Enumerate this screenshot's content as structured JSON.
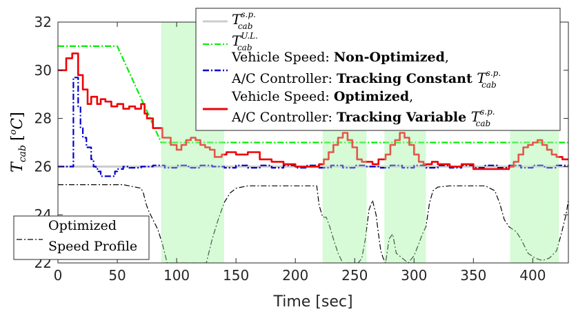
{
  "chart_data": {
    "type": "line",
    "xlabel": "Time [sec]",
    "ylabel": {
      "symbol": "T",
      "sub": "cab",
      "unit_open": "[",
      "unit_sup": "o",
      "unit_letter": "C",
      "unit_close": "]"
    },
    "xlim": [
      0,
      430
    ],
    "ylim": [
      22,
      32
    ],
    "xticks": [
      0,
      50,
      100,
      150,
      200,
      250,
      300,
      350,
      400
    ],
    "yticks": [
      22,
      24,
      26,
      28,
      30,
      32
    ],
    "shaded_intervals": [
      [
        87,
        140
      ],
      [
        223,
        260
      ],
      [
        275,
        310
      ],
      [
        381,
        422
      ]
    ],
    "shade_color": "#cdfacd",
    "series": [
      {
        "name": "setpoint",
        "legend_symbol": "T",
        "legend_sup": "s.p.",
        "legend_sub": "cab",
        "color": "#cccccc",
        "style": "solid",
        "x": [
          0,
          430
        ],
        "y": [
          26,
          26
        ]
      },
      {
        "name": "upper_limit",
        "legend_symbol": "T",
        "legend_sup": "U.L.",
        "legend_sub": "cab",
        "color": "#00ee00",
        "style": "dashdot",
        "x": [
          0,
          50,
          87,
          430
        ],
        "y": [
          31,
          31,
          27,
          27
        ]
      },
      {
        "name": "non_optimized_tracking_constant",
        "legend_line1_prefix": "Vehicle Speed: ",
        "legend_line1_bold": "Non-Optimized",
        "legend_line2_prefix": "A/C Controller: ",
        "legend_line2_bold": "Tracking Constant ",
        "legend_symbol": "T",
        "legend_sup": "s.p.",
        "legend_sub": "cab",
        "color": "#0000cc",
        "style": "dashdot",
        "x": [
          0,
          12,
          13,
          15,
          17,
          19,
          21,
          22,
          24,
          26,
          28,
          30,
          32,
          34,
          36,
          38,
          45,
          48,
          50,
          55,
          60,
          70,
          80,
          90,
          100,
          110,
          120,
          130,
          140,
          150,
          160,
          170,
          180,
          190,
          200,
          210,
          220,
          230,
          240,
          250,
          260,
          270,
          280,
          290,
          300,
          310,
          320,
          330,
          340,
          350,
          360,
          370,
          380,
          390,
          400,
          410,
          420,
          430
        ],
        "y": [
          26,
          26,
          29.7,
          29.7,
          28.5,
          27.6,
          27.2,
          27.2,
          26.8,
          26.8,
          26.3,
          26.0,
          25.9,
          25.8,
          25.6,
          25.6,
          25.6,
          25.8,
          25.9,
          26.0,
          25.95,
          26.0,
          26.05,
          25.95,
          26.05,
          25.95,
          26.05,
          26.0,
          25.95,
          26.05,
          25.95,
          26.05,
          25.95,
          26.05,
          25.95,
          26.05,
          25.95,
          26.05,
          25.95,
          26.05,
          26.0,
          25.95,
          26.05,
          25.95,
          26.05,
          25.95,
          26.05,
          25.95,
          26.05,
          25.95,
          26.05,
          25.95,
          26.05,
          25.95,
          26.05,
          25.95,
          26.05,
          26.0
        ]
      },
      {
        "name": "optimized_tracking_variable",
        "legend_line1_prefix": "Vehicle Speed: ",
        "legend_line1_bold": "Optimized",
        "legend_line2_prefix": "A/C Controller: ",
        "legend_line2_bold": "Tracking Variable ",
        "legend_symbol": "T",
        "legend_sup": "s.p.",
        "legend_sub": "cab",
        "color": "#ee0000",
        "style": "solid",
        "x": [
          0,
          5,
          7,
          10,
          12,
          15,
          17,
          20,
          21,
          23,
          25,
          26,
          28,
          30,
          33,
          36,
          40,
          45,
          50,
          55,
          60,
          65,
          70,
          73,
          75,
          80,
          85,
          88,
          92,
          95,
          100,
          104,
          108,
          112,
          116,
          120,
          124,
          128,
          132,
          138,
          142,
          150,
          160,
          170,
          180,
          190,
          200,
          210,
          215,
          220,
          224,
          228,
          232,
          236,
          240,
          244,
          248,
          252,
          256,
          260,
          265,
          270,
          276,
          280,
          284,
          288,
          292,
          296,
          300,
          304,
          308,
          315,
          320,
          330,
          340,
          350,
          360,
          370,
          380,
          384,
          388,
          392,
          396,
          400,
          404,
          408,
          412,
          416,
          420,
          425,
          430
        ],
        "y": [
          30,
          30,
          30.5,
          30.5,
          30.7,
          30.7,
          29.8,
          29.8,
          29.2,
          29.2,
          28.6,
          28.6,
          28.9,
          28.9,
          28.6,
          28.8,
          28.7,
          28.5,
          28.6,
          28.4,
          28.5,
          28.4,
          28.6,
          28.2,
          28.0,
          27.6,
          27.6,
          27.2,
          27.2,
          26.9,
          26.7,
          26.9,
          27.1,
          27.2,
          27.1,
          26.9,
          26.8,
          26.7,
          26.4,
          26.5,
          26.6,
          26.5,
          26.6,
          26.3,
          26.2,
          26.1,
          26.0,
          26.0,
          26.0,
          26.1,
          26.3,
          26.6,
          26.9,
          27.2,
          27.4,
          27.1,
          26.8,
          26.3,
          26.2,
          26.2,
          26.1,
          26.3,
          26.5,
          26.9,
          27.1,
          27.4,
          27.2,
          26.9,
          26.5,
          26.2,
          26.1,
          26.2,
          26.1,
          26.0,
          26.1,
          25.9,
          25.9,
          25.9,
          26.0,
          26.2,
          26.5,
          26.8,
          26.9,
          27.0,
          27.1,
          26.9,
          26.7,
          26.5,
          26.4,
          26.3,
          26.3
        ]
      },
      {
        "name": "optimized_speed_profile",
        "legend_line1": "Optimized",
        "legend_line2": "Speed Profile",
        "color": "#000000",
        "style": "dashdot",
        "x": [
          0,
          30,
          55,
          70,
          72,
          74,
          76,
          80,
          84,
          88,
          92,
          100,
          110,
          125,
          130,
          135,
          140,
          145,
          150,
          160,
          180,
          200,
          218,
          220,
          223,
          226,
          229,
          232,
          236,
          240,
          243,
          246,
          250,
          253,
          256,
          259,
          262,
          265,
          268,
          270,
          272,
          274,
          276,
          279,
          282,
          285,
          290,
          295,
          300,
          304,
          307,
          310,
          313,
          316,
          320,
          330,
          360,
          368,
          372,
          376,
          380,
          383,
          386,
          390,
          396,
          402,
          408,
          414,
          420,
          424,
          428,
          430
        ],
        "y": [
          25.25,
          25.25,
          25.25,
          25.1,
          24.9,
          24.5,
          24.2,
          23.8,
          23.4,
          22.8,
          22.0,
          22.0,
          22.0,
          22.0,
          23.0,
          23.8,
          24.5,
          24.9,
          25.1,
          25.2,
          25.2,
          25.2,
          25.2,
          24.4,
          23.9,
          23.9,
          23.5,
          23.0,
          22.4,
          22.0,
          22.0,
          22.0,
          22.0,
          22.0,
          22.2,
          23.0,
          24.2,
          24.6,
          24.0,
          23.2,
          22.5,
          22.2,
          22.0,
          23.0,
          23.2,
          22.4,
          22.2,
          22.0,
          22.3,
          22.8,
          23.2,
          23.5,
          24.5,
          25.0,
          25.15,
          25.2,
          25.2,
          25.0,
          24.5,
          23.8,
          23.5,
          23.4,
          23.3,
          23.0,
          22.4,
          22.2,
          22.1,
          22.2,
          22.5,
          23.2,
          24.0,
          24.6
        ]
      }
    ]
  }
}
